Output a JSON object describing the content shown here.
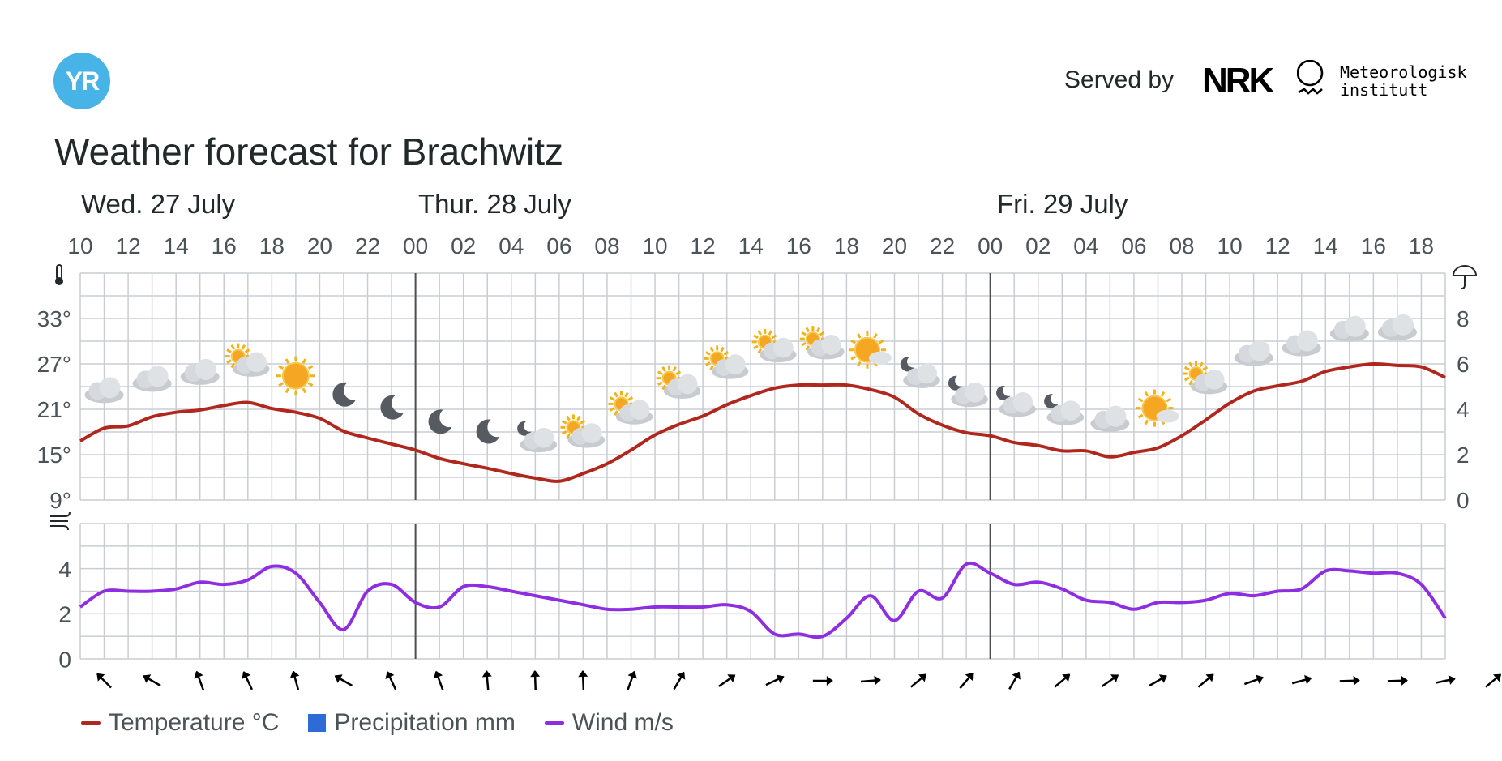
{
  "header": {
    "logo_text": "YR",
    "served_by": "Served by",
    "nrk_text": "NRK",
    "met_text": "Meteorologisk\ninstitutt",
    "title": "Weather forecast for Brachwitz"
  },
  "days": [
    "Wed. 27 July",
    "Thur. 28 July",
    "Fri. 29 July"
  ],
  "colors": {
    "temperature": "#b0271e",
    "wind": "#8e2ee0",
    "precipitation": "#2f6bd6",
    "grid": "#c9cdd3",
    "day_line": "#4a4f54"
  },
  "chart_data": {
    "type": "line",
    "x_hours_label_every": 2,
    "x_tick_labels": [
      "10",
      "12",
      "14",
      "16",
      "18",
      "20",
      "22",
      "00",
      "02",
      "04",
      "06",
      "08",
      "10",
      "12",
      "14",
      "16",
      "18",
      "20",
      "22",
      "00",
      "02",
      "04",
      "06",
      "08",
      "10",
      "12",
      "14",
      "16",
      "18"
    ],
    "temperature": {
      "name": "Temperature °C",
      "y_tick_labels": [
        "33°",
        "27°",
        "21°",
        "15°",
        "9°"
      ],
      "ylim": [
        9,
        39
      ],
      "values": [
        16.8,
        18.5,
        18.8,
        20,
        20.6,
        20.9,
        21.5,
        21.9,
        21.1,
        20.6,
        19.8,
        18.1,
        17.2,
        16.4,
        15.6,
        14.5,
        13.8,
        13.2,
        12.5,
        11.9,
        11.5,
        12.5,
        13.8,
        15.6,
        17.6,
        19,
        20.1,
        21.6,
        22.8,
        23.8,
        24.2,
        24.2,
        24.2,
        23.6,
        22.6,
        20.4,
        18.9,
        17.9,
        17.5,
        16.6,
        16.2,
        15.5,
        15.5,
        14.7,
        15.3,
        15.9,
        17.5,
        19.6,
        21.8,
        23.4,
        24.1,
        24.7,
        26,
        26.6,
        27,
        26.8,
        26.6,
        25.2
      ]
    },
    "precipitation": {
      "name": "Precipitation mm",
      "y_tick_labels": [
        "8",
        "6",
        "4",
        "2",
        "0"
      ],
      "ylim": [
        0,
        10
      ]
    },
    "wind": {
      "name": "Wind m/s",
      "y_tick_labels": [
        "4",
        "2",
        "0"
      ],
      "ylim": [
        0,
        6
      ],
      "values": [
        2.3,
        3,
        3,
        3,
        3.1,
        3.4,
        3.3,
        3.5,
        4.1,
        3.8,
        2.5,
        1.3,
        3,
        3.3,
        2.5,
        2.3,
        3.2,
        3.2,
        3,
        2.8,
        2.6,
        2.4,
        2.2,
        2.2,
        2.3,
        2.3,
        2.3,
        2.4,
        2.1,
        1.1,
        1.1,
        1,
        1.8,
        2.8,
        1.7,
        3,
        2.7,
        4.2,
        3.8,
        3.3,
        3.4,
        3.1,
        2.6,
        2.5,
        2.2,
        2.5,
        2.5,
        2.6,
        2.9,
        2.8,
        3,
        3.1,
        3.9,
        3.9,
        3.8,
        3.8,
        3.3,
        1.8
      ]
    },
    "weather_icons": [
      "cloudy",
      "cloudy",
      "cloudy",
      "partly-cloudy-day",
      "clear-day",
      "clear-night",
      "clear-night",
      "clear-night",
      "clear-night",
      "partly-cloudy-night",
      "partly-cloudy-day",
      "partly-cloudy-day",
      "partly-cloudy-day",
      "partly-cloudy-day",
      "partly-cloudy-day",
      "partly-cloudy-day",
      "fair-day",
      "partly-cloudy-night",
      "partly-cloudy-night",
      "partly-cloudy-night",
      "partly-cloudy-night",
      "cloudy",
      "fair-day",
      "partly-cloudy-day",
      "cloudy",
      "cloudy",
      "cloudy",
      "cloudy"
    ],
    "wind_directions_deg": [
      135,
      120,
      160,
      155,
      165,
      120,
      155,
      160,
      175,
      178,
      178,
      200,
      210,
      235,
      245,
      270,
      265,
      230,
      220,
      210,
      230,
      235,
      240,
      230,
      250,
      255,
      268,
      268,
      258,
      230
    ],
    "legend": [
      "Temperature °C",
      "Precipitation mm",
      "Wind m/s"
    ]
  }
}
